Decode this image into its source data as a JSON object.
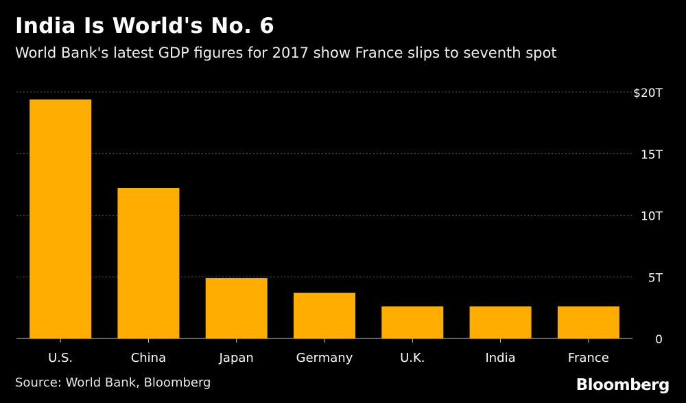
{
  "header": {
    "title": "India Is World's No. 6",
    "subtitle": "World Bank's latest GDP figures for 2017 show France slips to seventh spot"
  },
  "footer": {
    "source": "Source: World Bank, Bloomberg",
    "brand": "Bloomberg"
  },
  "colors": {
    "bar": "#FFAD00",
    "background": "#000000",
    "text": "#FFFFFF",
    "grid": "#5a5a5a"
  },
  "chart_data": {
    "type": "bar",
    "title": "India Is World's No. 6",
    "subtitle": "World Bank's latest GDP figures for 2017 show France slips to seventh spot",
    "xlabel": "",
    "ylabel": "",
    "categories": [
      "U.S.",
      "China",
      "Japan",
      "Germany",
      "U.K.",
      "India",
      "France"
    ],
    "values": [
      19.4,
      12.2,
      4.9,
      3.7,
      2.6,
      2.6,
      2.6
    ],
    "ylim": [
      0,
      20
    ],
    "y_ticks": [
      0,
      5,
      10,
      15,
      20
    ],
    "y_tick_labels": [
      "0",
      "5T",
      "10T",
      "15T",
      "$20T"
    ],
    "y_axis_position": "right",
    "grid": true,
    "legend": "none"
  }
}
